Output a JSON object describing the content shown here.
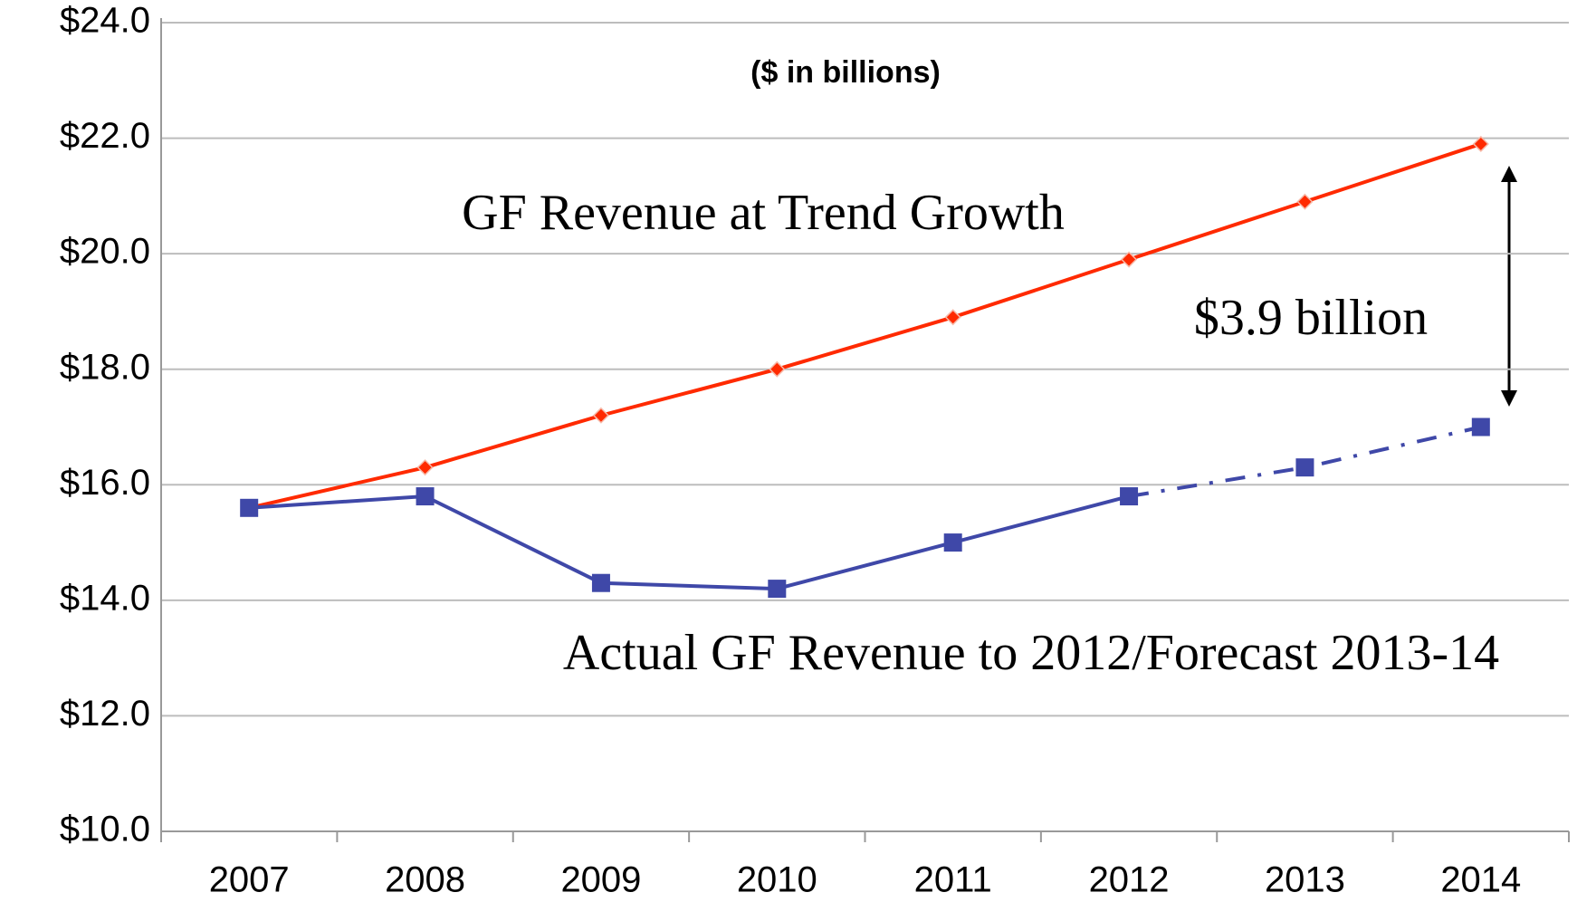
{
  "chart_data": {
    "type": "line",
    "subtitle": "($ in billions)",
    "categories": [
      "2007",
      "2008",
      "2009",
      "2010",
      "2011",
      "2012",
      "2013",
      "2014"
    ],
    "series": [
      {
        "name": "GF Revenue at Trend Growth",
        "color": "#ff2a00",
        "marker": "diamond",
        "values": [
          15.6,
          16.3,
          17.2,
          18.0,
          18.9,
          19.9,
          20.9,
          21.9
        ]
      },
      {
        "name": "Actual GF Revenue to 2012/Forecast 2013-14",
        "color": "#3f48a8",
        "marker": "square",
        "dashed_from": "2012",
        "values": [
          15.6,
          15.8,
          14.3,
          14.2,
          15.0,
          15.8,
          16.3,
          17.0
        ]
      }
    ],
    "annotations": [
      "$3.9 billion"
    ],
    "ylim": [
      10,
      24
    ],
    "yticks": [
      {
        "value": 10,
        "label": "$10.0"
      },
      {
        "value": 12,
        "label": "$12.0"
      },
      {
        "value": 14,
        "label": "$14.0"
      },
      {
        "value": 16,
        "label": "$16.0"
      },
      {
        "value": 18,
        "label": "$18.0"
      },
      {
        "value": 20,
        "label": "$20.0"
      },
      {
        "value": 22,
        "label": "$22.0"
      },
      {
        "value": 24,
        "label": "$24.0"
      }
    ],
    "grid": true
  }
}
